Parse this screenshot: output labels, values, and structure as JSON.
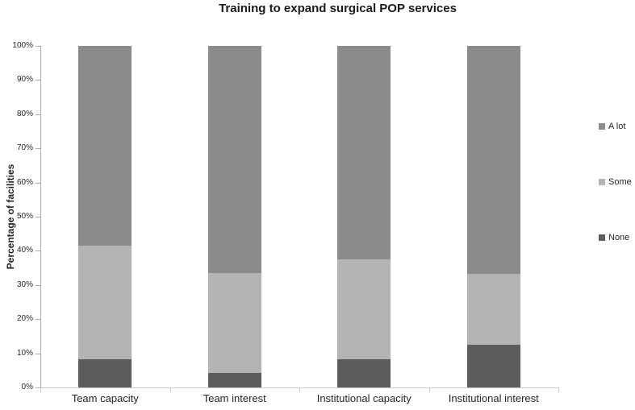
{
  "figure": {
    "title": "Training to expand surgical POP services"
  },
  "chart_data": {
    "type": "bar",
    "stacked": true,
    "title": "Training to expand surgical POP services",
    "ylabel": "Percentage of facilities",
    "xlabel": "",
    "ylim": [
      0,
      100
    ],
    "ytick_step": 10,
    "ytick_labels": [
      "0%",
      "10%",
      "20%",
      "30%",
      "40%",
      "50%",
      "60%",
      "70%",
      "80%",
      "90%",
      "100%"
    ],
    "grid": false,
    "legend_position": "right",
    "categories": [
      "Team capacity",
      "Team interest",
      "Institutional capacity",
      "Institutional interest"
    ],
    "series": [
      {
        "name": "None",
        "color": "#5c5c5c",
        "values": [
          8.3,
          4.2,
          8.3,
          12.5
        ]
      },
      {
        "name": "Some",
        "color": "#b4b4b4",
        "values": [
          33.3,
          29.2,
          29.2,
          20.8
        ]
      },
      {
        "name": "A lot",
        "color": "#8b8b8b",
        "values": [
          58.3,
          66.7,
          62.5,
          66.7
        ]
      }
    ],
    "legend": [
      {
        "label": "A lot",
        "color": "#8b8b8b"
      },
      {
        "label": "Some",
        "color": "#b4b4b4"
      },
      {
        "label": "None",
        "color": "#5c5c5c"
      }
    ]
  },
  "colors": {
    "background": "#ffffff",
    "axis_line_x": "#c9c9c9",
    "axis_line_y": "#a9a9a9",
    "tick_text": "#262626",
    "title_text": "#1a1a1a"
  }
}
